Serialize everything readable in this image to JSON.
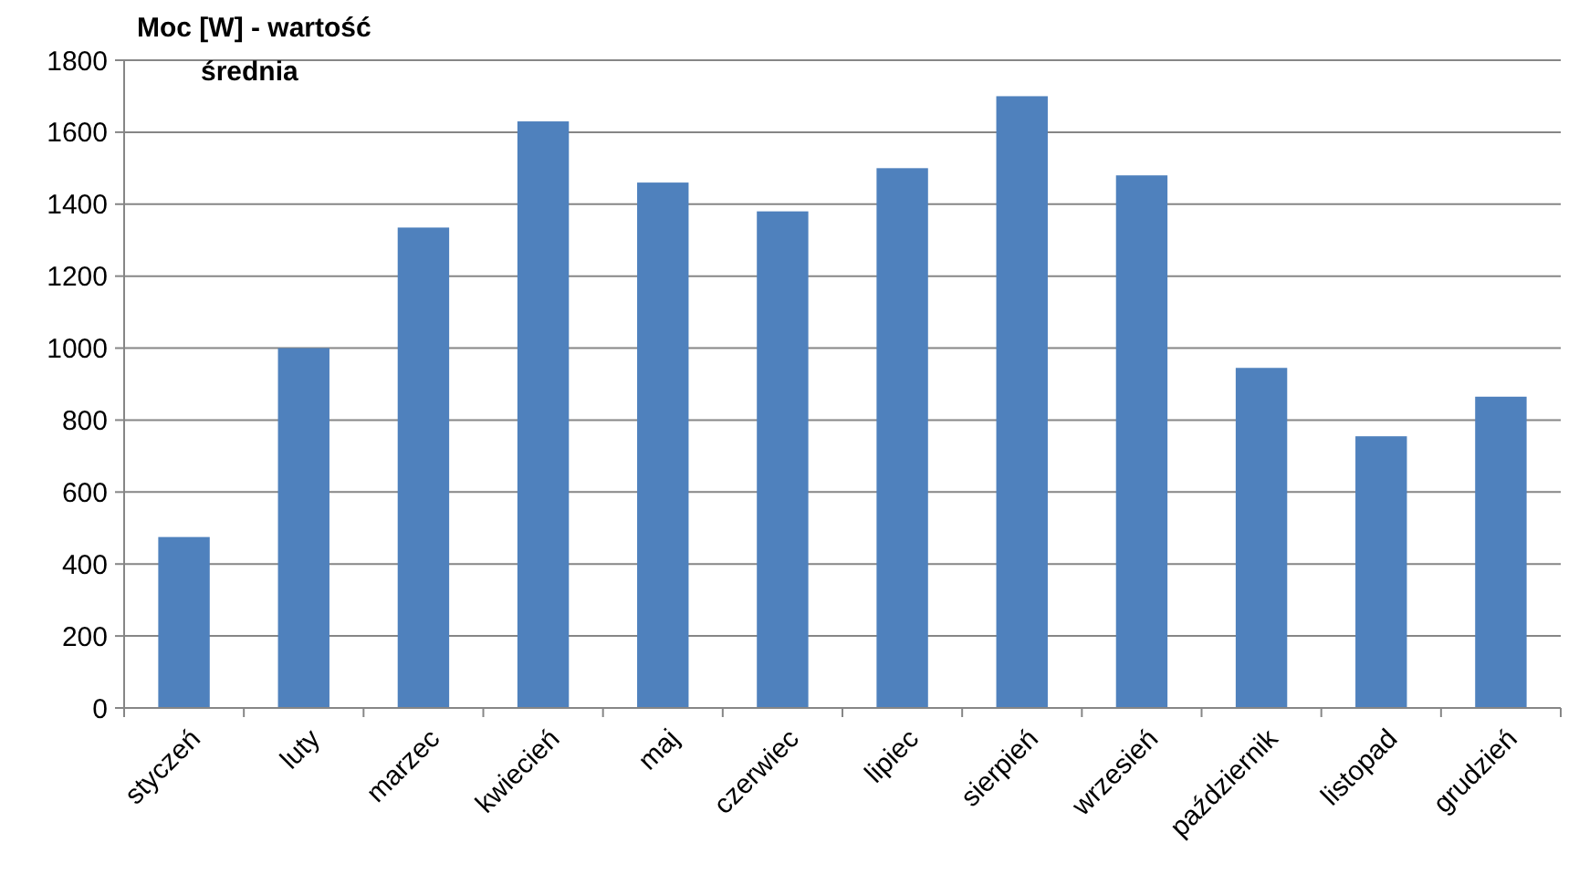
{
  "chart_data": {
    "type": "bar",
    "title": "Moc [W] - wartość\nśrednia",
    "categories": [
      "styczeń",
      "luty",
      "marzec",
      "kwiecień",
      "maj",
      "czerwiec",
      "lipiec",
      "sierpień",
      "wrzesień",
      "październik",
      "listopad",
      "grudzień"
    ],
    "values": [
      475,
      1000,
      1335,
      1630,
      1460,
      1380,
      1500,
      1700,
      1480,
      945,
      755,
      865
    ],
    "color": "#4f81bd",
    "ylim": [
      0,
      1800
    ],
    "yticks": [
      0,
      200,
      400,
      600,
      800,
      1000,
      1200,
      1400,
      1600,
      1800
    ],
    "grid": "y"
  }
}
